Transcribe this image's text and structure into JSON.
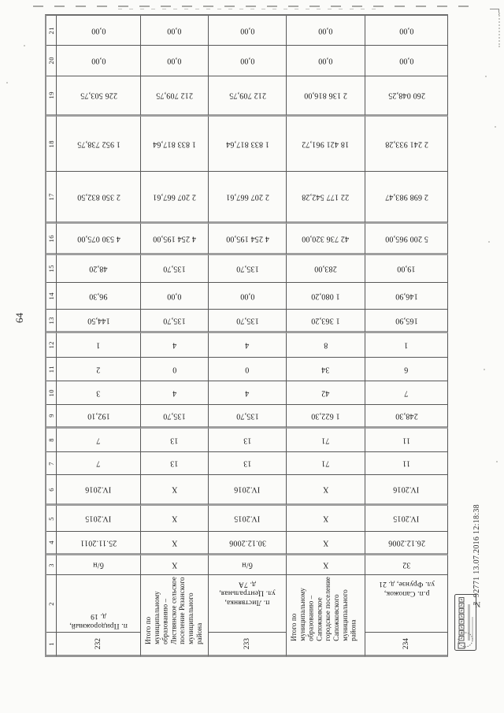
{
  "page_number": "64",
  "stamp": {
    "text": "№ 92771  13.07.2016 12:18:38"
  },
  "table": {
    "column_numbers_top_to_bottom": [
      "21",
      "20",
      "19",
      "18",
      "17",
      "16",
      "15",
      "14",
      "13",
      "12",
      "11",
      "10",
      "9",
      "8",
      "7",
      "6",
      "5",
      "4",
      "3",
      "2",
      "1"
    ],
    "columns": [
      {
        "kind": "entry",
        "id": "232",
        "address": "п. Придорожный,\nд. 19",
        "cells": [
          "0,00",
          "0,00",
          "226 503,75",
          "1 952 738,75",
          "2 350 832,50",
          "4 530 075,00",
          "48,20",
          "96,30",
          "144,50",
          "1",
          "2",
          "3",
          "192,10",
          "7",
          "7",
          "IV.2016",
          "IV.2015",
          "25.11.2011",
          "б/н"
        ]
      },
      {
        "kind": "total",
        "label": "Итого по\nмуниципальному\nобразованию –\nЛиствянское сельское\nпоселение Рязанского\nмуниципального\nрайона",
        "cells": [
          "0,00",
          "0,00",
          "212 709,75",
          "1 833 817,64",
          "2 207 667,61",
          "4 254 195,00",
          "135,70",
          "0,00",
          "135,70",
          "4",
          "0",
          "4",
          "135,70",
          "13",
          "13",
          "X",
          "X",
          "X",
          "X"
        ]
      },
      {
        "kind": "entry",
        "id": "233",
        "address": "п. Листвянка,\nул. Центральная,\nд. 7А",
        "cells": [
          "0,00",
          "0,00",
          "212 709,75",
          "1 833 817,64",
          "2 207 667,61",
          "4 254 195,00",
          "135,70",
          "0,00",
          "135,70",
          "4",
          "0",
          "4",
          "135,70",
          "13",
          "13",
          "IV.2016",
          "IV.2015",
          "30.12.2006",
          "б/н"
        ]
      },
      {
        "kind": "total",
        "label": "Итого по\nмуниципальному\nобразованию –\nСапожковское\nгородское поселение\nСапожковского\nмуниципального\nрайона",
        "cells": [
          "0,00",
          "0,00",
          "2 136 816,00",
          "18 421 961,72",
          "22 177 542,28",
          "42 736 320,00",
          "283,00",
          "1 080,20",
          "1 363,20",
          "8",
          "34",
          "42",
          "1 622,30",
          "71",
          "71",
          "X",
          "X",
          "X",
          "X"
        ]
      },
      {
        "kind": "entry",
        "id": "234",
        "address": "р.п. Сапожок,\nул. Фрунзе, д. 21",
        "cells": [
          "0,00",
          "0,00",
          "260 048,25",
          "2 241 933,28",
          "2 698 983,47",
          "5 200 965,00",
          "19,00",
          "146,90",
          "165,90",
          "1",
          "6",
          "7",
          "248,30",
          "11",
          "11",
          "IV.2016",
          "IV.2015",
          "26.12.2006",
          "32"
        ]
      }
    ]
  }
}
